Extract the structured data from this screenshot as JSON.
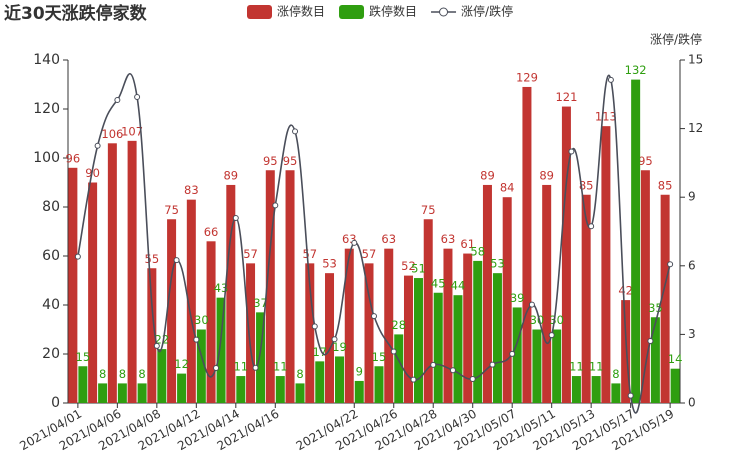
{
  "chart_data": {
    "type": "bar_line",
    "title": "近30天涨跌停家数",
    "y2_label": "涨停/跌停",
    "categories": [
      "2021/04/01",
      null,
      "2021/04/06",
      null,
      "2021/04/08",
      null,
      "2021/04/12",
      null,
      "2021/04/14",
      null,
      "2021/04/16",
      null,
      null,
      null,
      "2021/04/22",
      null,
      "2021/04/26",
      null,
      "2021/04/28",
      null,
      "2021/04/30",
      null,
      "2021/05/07",
      null,
      "2021/05/11",
      null,
      "2021/05/13",
      null,
      "2021/05/17",
      null,
      "2021/05/19"
    ],
    "series": [
      {
        "name": "涨停数目",
        "type": "bar",
        "color": "#c23531",
        "values": [
          96,
          90,
          106,
          107,
          55,
          75,
          83,
          66,
          89,
          57,
          95,
          95,
          57,
          53,
          63,
          57,
          63,
          52,
          75,
          63,
          61,
          89,
          84,
          129,
          89,
          121,
          85,
          113,
          42,
          95,
          85
        ]
      },
      {
        "name": "跌停数目",
        "type": "bar",
        "color": "#2f9e10",
        "values": [
          15,
          8,
          8,
          8,
          22,
          12,
          30,
          43,
          11,
          37,
          11,
          8,
          17,
          19,
          9,
          15,
          28,
          51,
          45,
          44,
          58,
          53,
          39,
          30,
          30,
          11,
          11,
          8,
          132,
          35,
          14
        ]
      },
      {
        "name": "涨停/跌停",
        "type": "line",
        "axis": "y2",
        "color": "#4a4e5a",
        "values": [
          6.4,
          11.25,
          13.25,
          13.38,
          2.5,
          6.25,
          2.77,
          1.53,
          8.09,
          1.54,
          8.64,
          11.88,
          3.35,
          2.79,
          7,
          3.8,
          2.25,
          1.02,
          1.67,
          1.43,
          1.05,
          1.68,
          2.15,
          4.3,
          2.97,
          11,
          7.73,
          14.13,
          0.32,
          2.71,
          6.07
        ]
      }
    ],
    "ylim": [
      0,
      140
    ],
    "yticks": [
      0,
      20,
      40,
      60,
      80,
      100,
      120,
      140
    ],
    "y2lim": [
      0,
      15
    ],
    "y2ticks": [
      0,
      3,
      6,
      9,
      12,
      15
    ]
  }
}
